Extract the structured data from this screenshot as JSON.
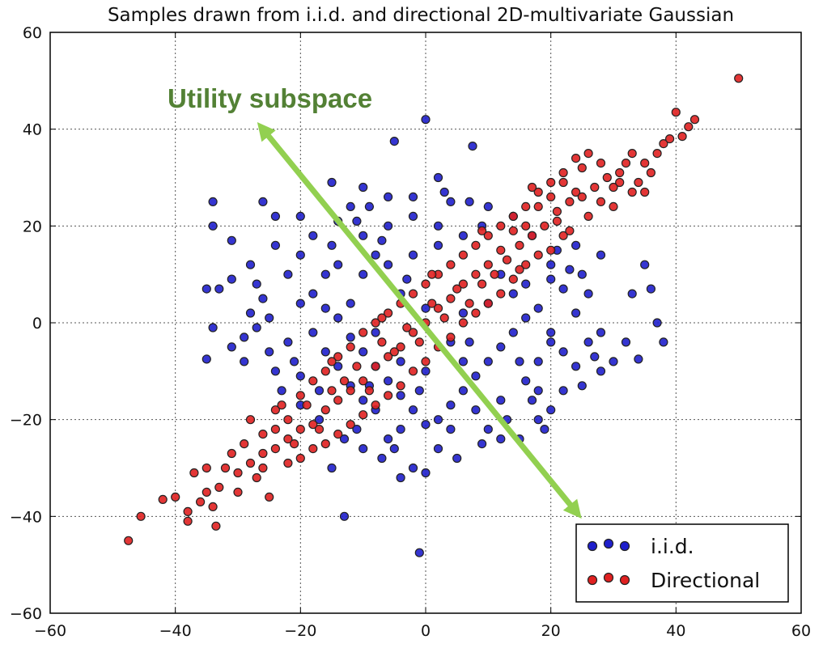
{
  "chart_data": {
    "type": "scatter",
    "title": "Samples drawn from i.i.d. and directional 2D-multivariate Gaussian",
    "xlabel": "",
    "ylabel": "",
    "xlim": [
      -60,
      60
    ],
    "ylim": [
      -60,
      60
    ],
    "xticks": [
      "−60",
      "−40",
      "−20",
      "0",
      "20",
      "40",
      "60"
    ],
    "yticks": [
      "60",
      "40",
      "20",
      "0",
      "−20",
      "−40",
      "−60"
    ],
    "grid": true,
    "legend": {
      "position": "bottom-right"
    },
    "series": [
      {
        "name": "i.i.d.",
        "color": "#1f1fcc",
        "points": [
          [
            -5,
            37.5
          ],
          [
            0,
            42
          ],
          [
            7.5,
            36.5
          ],
          [
            2,
            30
          ],
          [
            -12,
            24
          ],
          [
            -15,
            29
          ],
          [
            -34,
            25
          ],
          [
            -34,
            20
          ],
          [
            -31,
            17
          ],
          [
            -26,
            25
          ],
          [
            -24,
            22
          ],
          [
            -28,
            12
          ],
          [
            -33,
            7
          ],
          [
            -35,
            7
          ],
          [
            -31,
            9
          ],
          [
            -26,
            5
          ],
          [
            -28,
            2
          ],
          [
            -34,
            -1
          ],
          [
            -35,
            -7.5
          ],
          [
            -31,
            -5
          ],
          [
            -29,
            -3
          ],
          [
            -27,
            -1
          ],
          [
            -25,
            -6
          ],
          [
            -24,
            -10
          ],
          [
            -23,
            -14
          ],
          [
            -20,
            -17
          ],
          [
            -17,
            -20
          ],
          [
            -20,
            -11
          ],
          [
            -13,
            -24
          ],
          [
            -15,
            -30
          ],
          [
            -10,
            -26
          ],
          [
            -7,
            -28
          ],
          [
            -4,
            -32
          ],
          [
            -2,
            -30
          ],
          [
            0,
            -31
          ],
          [
            -1,
            -47.5
          ],
          [
            -13,
            -40
          ],
          [
            5,
            -28
          ],
          [
            9,
            -25
          ],
          [
            12,
            -24
          ],
          [
            15,
            -24
          ],
          [
            18,
            -20
          ],
          [
            20,
            -18
          ],
          [
            22,
            -14
          ],
          [
            25,
            -13
          ],
          [
            28,
            -10
          ],
          [
            30,
            -8
          ],
          [
            32,
            -4
          ],
          [
            34,
            -7.5
          ],
          [
            37,
            0
          ],
          [
            38,
            -4
          ],
          [
            33,
            6
          ],
          [
            36,
            7
          ],
          [
            35,
            12
          ],
          [
            28,
            14
          ],
          [
            24,
            16
          ],
          [
            20,
            12
          ],
          [
            17,
            18
          ],
          [
            14,
            22
          ],
          [
            10,
            24
          ],
          [
            7,
            25
          ],
          [
            3,
            27
          ],
          [
            -2,
            26
          ],
          [
            -6,
            26
          ],
          [
            -9,
            24
          ],
          [
            -14,
            21
          ],
          [
            -18,
            18
          ],
          [
            -20,
            14
          ],
          [
            -22,
            10
          ],
          [
            -18,
            6
          ],
          [
            -16,
            3
          ],
          [
            -14,
            1
          ],
          [
            -12,
            -3
          ],
          [
            -10,
            -6
          ],
          [
            -8,
            -9
          ],
          [
            -6,
            -12
          ],
          [
            -4,
            -15
          ],
          [
            -2,
            -18
          ],
          [
            0,
            -21
          ],
          [
            2,
            -20
          ],
          [
            4,
            -17
          ],
          [
            6,
            -14
          ],
          [
            8,
            -11
          ],
          [
            10,
            -8
          ],
          [
            12,
            -5
          ],
          [
            14,
            -2
          ],
          [
            16,
            1
          ],
          [
            18,
            3
          ],
          [
            20,
            -2
          ],
          [
            22,
            -6
          ],
          [
            24,
            -9
          ],
          [
            26,
            -4
          ],
          [
            24,
            2
          ],
          [
            22,
            7
          ],
          [
            20,
            9
          ],
          [
            -10,
            18
          ],
          [
            -6,
            20
          ],
          [
            -2,
            22
          ],
          [
            2,
            20
          ],
          [
            6,
            18
          ],
          [
            -14,
            12
          ],
          [
            -10,
            10
          ],
          [
            -6,
            12
          ],
          [
            -2,
            14
          ],
          [
            2,
            16
          ],
          [
            -18,
            -2
          ],
          [
            -16,
            -6
          ],
          [
            -14,
            -9
          ],
          [
            -12,
            -13
          ],
          [
            -10,
            -16
          ],
          [
            -8,
            -18
          ],
          [
            -4,
            -22
          ],
          [
            4,
            -22
          ],
          [
            8,
            -18
          ],
          [
            12,
            -16
          ],
          [
            16,
            -12
          ],
          [
            18,
            -8
          ],
          [
            20,
            -4
          ],
          [
            14,
            6
          ],
          [
            10,
            4
          ],
          [
            6,
            2
          ],
          [
            4,
            -4
          ],
          [
            0,
            -10
          ],
          [
            -4,
            -8
          ],
          [
            -8,
            -2
          ],
          [
            -12,
            4
          ],
          [
            -16,
            10
          ],
          [
            -8,
            14
          ],
          [
            -4,
            6
          ],
          [
            6,
            -8
          ],
          [
            12,
            10
          ],
          [
            16,
            8
          ],
          [
            -20,
            4
          ],
          [
            -22,
            -4
          ],
          [
            -6,
            -24
          ],
          [
            2,
            -26
          ],
          [
            10,
            -22
          ],
          [
            18,
            -14
          ],
          [
            26,
            6
          ],
          [
            28,
            -2
          ],
          [
            -24,
            16
          ],
          [
            -20,
            22
          ],
          [
            -10,
            28
          ],
          [
            4,
            25
          ],
          [
            9,
            20
          ],
          [
            -3,
            9
          ],
          [
            0,
            3
          ],
          [
            -9,
            -13
          ],
          [
            -1,
            -14
          ],
          [
            7,
            -4
          ],
          [
            15,
            -8
          ],
          [
            17,
            -16
          ],
          [
            -15,
            16
          ],
          [
            -11,
            21
          ],
          [
            -7,
            17
          ],
          [
            23,
            11
          ],
          [
            21,
            15
          ],
          [
            -27,
            8
          ],
          [
            -29,
            -8
          ],
          [
            -25,
            1
          ],
          [
            27,
            -7
          ],
          [
            19,
            -22
          ],
          [
            13,
            -20
          ],
          [
            -5,
            -26
          ],
          [
            -11,
            -22
          ],
          [
            -17,
            -14
          ],
          [
            -21,
            -8
          ],
          [
            25,
            10
          ]
        ]
      },
      {
        "name": "Directional",
        "color": "#e02020",
        "points": [
          [
            50,
            50.5
          ],
          [
            43,
            42
          ],
          [
            42,
            40.5
          ],
          [
            40,
            43.5
          ],
          [
            41,
            38.5
          ],
          [
            38,
            37
          ],
          [
            37,
            35
          ],
          [
            35,
            33
          ],
          [
            34,
            29
          ],
          [
            33,
            27
          ],
          [
            31,
            31
          ],
          [
            28,
            33
          ],
          [
            30,
            28
          ],
          [
            25,
            32
          ],
          [
            24,
            27
          ],
          [
            22,
            29
          ],
          [
            20,
            26
          ],
          [
            18,
            24
          ],
          [
            21,
            21
          ],
          [
            16,
            20
          ],
          [
            12,
            15
          ],
          [
            14,
            19
          ],
          [
            10,
            12
          ],
          [
            8,
            10
          ],
          [
            6,
            8
          ],
          [
            4,
            5
          ],
          [
            2,
            3
          ],
          [
            0,
            0
          ],
          [
            -2,
            -2
          ],
          [
            -4,
            -5
          ],
          [
            -6,
            -7
          ],
          [
            -8,
            -9
          ],
          [
            -10,
            -12
          ],
          [
            -12,
            -14
          ],
          [
            -14,
            -16
          ],
          [
            -16,
            -18
          ],
          [
            -18,
            -21
          ],
          [
            -20,
            -22
          ],
          [
            -22,
            -24
          ],
          [
            -24,
            -26
          ],
          [
            -26,
            -27
          ],
          [
            -28,
            -29
          ],
          [
            -30,
            -31
          ],
          [
            -32,
            -30
          ],
          [
            -33,
            -34
          ],
          [
            -34,
            -38
          ],
          [
            -35,
            -35
          ],
          [
            -36,
            -37
          ],
          [
            -37,
            -31
          ],
          [
            -38,
            -39
          ],
          [
            -38,
            -41
          ],
          [
            -42,
            -36.5
          ],
          [
            -45.5,
            -40
          ],
          [
            -47.5,
            -45
          ],
          [
            -33.5,
            -42
          ],
          [
            -25,
            -36
          ],
          [
            -22,
            -29
          ],
          [
            -20,
            -28
          ],
          [
            -26,
            -23
          ],
          [
            -28,
            -20
          ],
          [
            -24,
            -18
          ],
          [
            -20,
            -15
          ],
          [
            -18,
            -12
          ],
          [
            -16,
            -10
          ],
          [
            -14,
            -7
          ],
          [
            -12,
            -5
          ],
          [
            -10,
            -2
          ],
          [
            -8,
            0
          ],
          [
            -6,
            2
          ],
          [
            -4,
            4
          ],
          [
            -2,
            6
          ],
          [
            0,
            8
          ],
          [
            2,
            10
          ],
          [
            4,
            12
          ],
          [
            6,
            14
          ],
          [
            8,
            16
          ],
          [
            10,
            18
          ],
          [
            12,
            20
          ],
          [
            14,
            22
          ],
          [
            16,
            24
          ],
          [
            18,
            27
          ],
          [
            20,
            29
          ],
          [
            22,
            31
          ],
          [
            24,
            34
          ],
          [
            26,
            35
          ],
          [
            28,
            25
          ],
          [
            30,
            24
          ],
          [
            26,
            22
          ],
          [
            22,
            18
          ],
          [
            18,
            14
          ],
          [
            16,
            12
          ],
          [
            14,
            9
          ],
          [
            12,
            6
          ],
          [
            10,
            4
          ],
          [
            8,
            2
          ],
          [
            6,
            0
          ],
          [
            4,
            -3
          ],
          [
            2,
            -5
          ],
          [
            0,
            -8
          ],
          [
            -2,
            -10
          ],
          [
            -4,
            -13
          ],
          [
            -6,
            -15
          ],
          [
            -8,
            -17
          ],
          [
            -10,
            -19
          ],
          [
            -12,
            -21
          ],
          [
            -14,
            -23
          ],
          [
            -16,
            -25
          ],
          [
            -18,
            -26
          ],
          [
            -22,
            -20
          ],
          [
            -24,
            -22
          ],
          [
            -26,
            -30
          ],
          [
            -29,
            -25
          ],
          [
            -31,
            -27
          ],
          [
            -19,
            -17
          ],
          [
            -11,
            -9
          ],
          [
            -3,
            -1
          ],
          [
            5,
            7
          ],
          [
            13,
            13
          ],
          [
            21,
            23
          ],
          [
            27,
            28
          ],
          [
            32,
            33
          ],
          [
            36,
            31
          ],
          [
            35,
            27
          ],
          [
            29,
            30
          ],
          [
            23,
            25
          ],
          [
            17,
            18
          ],
          [
            11,
            10
          ],
          [
            3,
            1
          ],
          [
            -5,
            -6
          ],
          [
            -13,
            -12
          ],
          [
            -21,
            -25
          ],
          [
            -27,
            -32
          ],
          [
            -15,
            -14
          ],
          [
            -7,
            -4
          ],
          [
            1,
            4
          ],
          [
            9,
            8
          ],
          [
            15,
            16
          ],
          [
            19,
            20
          ],
          [
            25,
            26
          ],
          [
            31,
            29
          ],
          [
            33,
            35
          ],
          [
            39,
            38
          ],
          [
            -30,
            -35
          ],
          [
            -17,
            -22
          ],
          [
            -9,
            -14
          ],
          [
            -1,
            -4
          ],
          [
            7,
            4
          ],
          [
            15,
            11
          ],
          [
            23,
            19
          ],
          [
            -23,
            -17
          ],
          [
            -15,
            -8
          ],
          [
            -7,
            1
          ],
          [
            1,
            10
          ],
          [
            9,
            19
          ],
          [
            17,
            28
          ],
          [
            -35,
            -30
          ],
          [
            20,
            15
          ],
          [
            -40,
            -36
          ]
        ]
      }
    ],
    "annotations": [
      {
        "text": "Utility subspace",
        "color": "#538135",
        "arrow_color": "#92d050",
        "arrow_from": [
          -26,
          40
        ],
        "arrow_to": [
          24,
          -39
        ]
      }
    ]
  }
}
